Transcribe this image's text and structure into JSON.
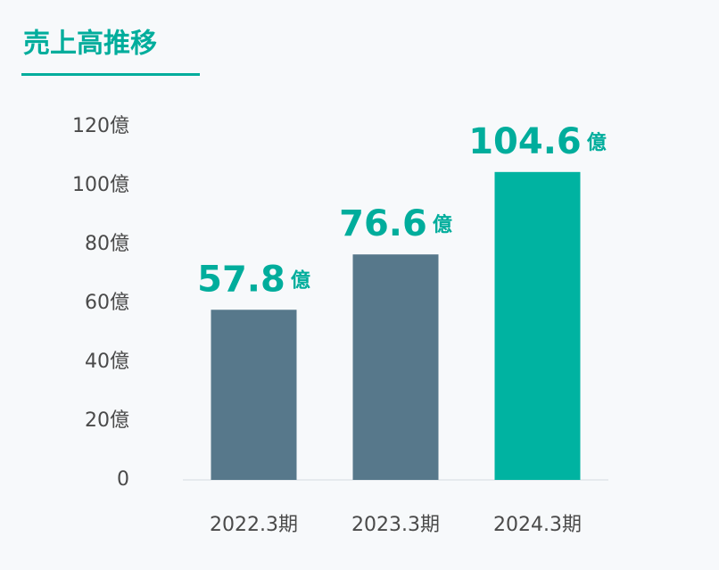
{
  "chart_data": {
    "type": "bar",
    "title": "売上高推移",
    "categories": [
      "2022.3期",
      "2023.3期",
      "2024.3期"
    ],
    "values": [
      57.8,
      76.6,
      104.6
    ],
    "value_unit": "億",
    "colors": [
      "#57788b",
      "#57788b",
      "#00b3a1"
    ],
    "label_color": "#00ad9c",
    "ylim": [
      0,
      120
    ],
    "yticks": [
      0,
      {
        "value": 20,
        "label": "20億"
      },
      {
        "value": 40,
        "label": "40億"
      },
      {
        "value": 60,
        "label": "60億"
      },
      {
        "value": 80,
        "label": "80億"
      },
      {
        "value": 100,
        "label": "100億"
      },
      {
        "value": 120,
        "label": "120億"
      }
    ],
    "grid": false
  }
}
